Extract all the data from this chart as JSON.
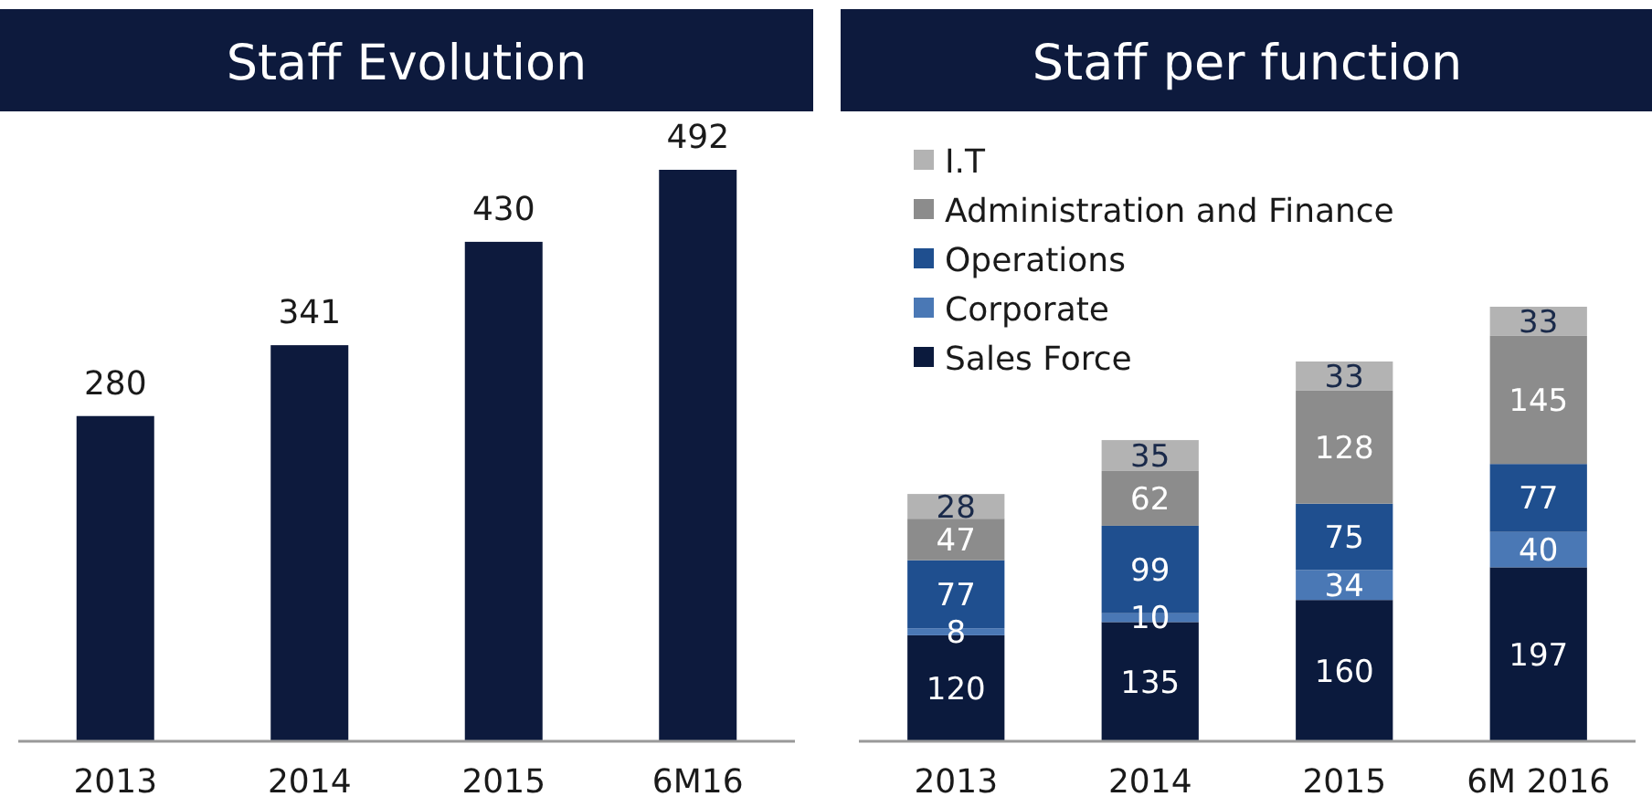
{
  "chart_data": [
    {
      "type": "bar",
      "title": "Staff Evolution",
      "categories": [
        "2013",
        "2014",
        "2015",
        "6M16"
      ],
      "values": [
        280,
        341,
        430,
        492
      ],
      "color": "#0d1a3d",
      "data_labels": true,
      "grid": false,
      "legend": false
    },
    {
      "type": "bar",
      "title": "Staff per function",
      "categories": [
        "2013",
        "2014",
        "2015",
        "6M 2016"
      ],
      "stacked": true,
      "data_labels": true,
      "grid": false,
      "legend": "top left",
      "series": [
        {
          "name": "Sales Force",
          "color": "#0b1a3d",
          "values": [
            120,
            135,
            160,
            197
          ]
        },
        {
          "name": "Corporate",
          "color": "#4a78b5",
          "values": [
            8,
            10,
            34,
            40
          ]
        },
        {
          "name": "Operations",
          "color": "#1f4f8f",
          "values": [
            77,
            99,
            75,
            77
          ]
        },
        {
          "name": "Administration and Finance",
          "color": "#8c8c8c",
          "values": [
            47,
            62,
            128,
            145
          ]
        },
        {
          "name": "I.T",
          "color": "#b3b3b3",
          "values": [
            28,
            35,
            33,
            33
          ]
        }
      ]
    }
  ]
}
